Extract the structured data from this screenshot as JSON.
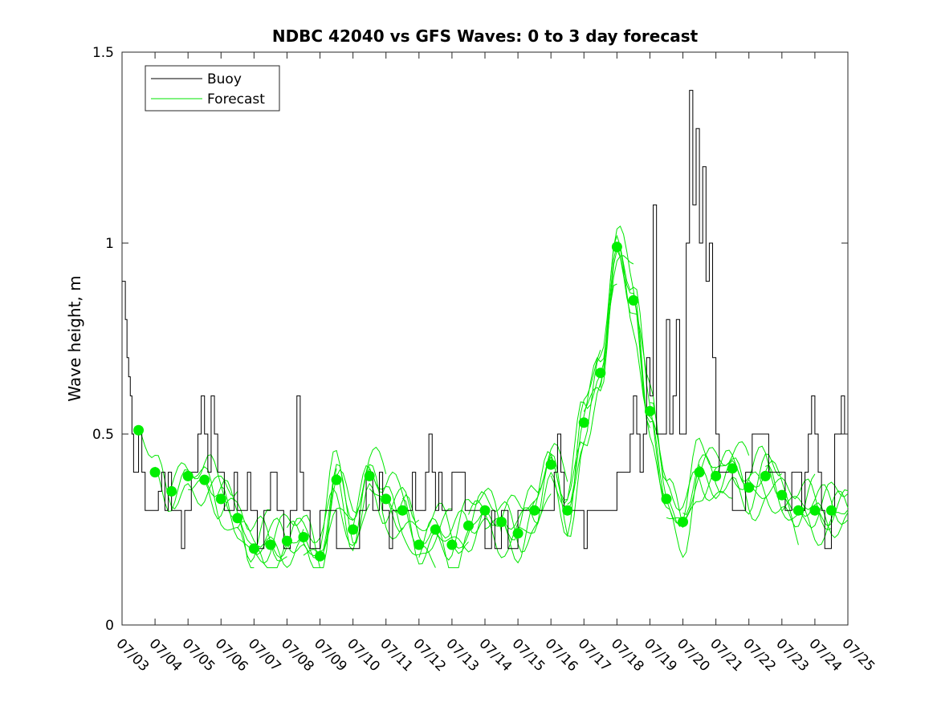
{
  "chart_data": {
    "type": "line",
    "title": "NDBC 42040 vs GFS Waves: 0 to 3 day forecast",
    "xlabel": "",
    "ylabel": "Wave height, m",
    "xlim": [
      "07/03",
      "07/25"
    ],
    "ylim": [
      0,
      1.5
    ],
    "grid": false,
    "legend_placement": "top-left",
    "x_tick_labels": [
      "07/03",
      "07/04",
      "07/05",
      "07/06",
      "07/07",
      "07/08",
      "07/09",
      "07/10",
      "07/11",
      "07/12",
      "07/13",
      "07/14",
      "07/15",
      "07/16",
      "07/17",
      "07/18",
      "07/19",
      "07/20",
      "07/21",
      "07/22",
      "07/23",
      "07/24",
      "07/25"
    ],
    "y_ticks": [
      0,
      0.5,
      1,
      1.5
    ],
    "y_tick_labels": [
      "0",
      "0.5",
      "1",
      "1.5"
    ],
    "colors": {
      "buoy": "#000000",
      "forecast": "#00e600",
      "analysis_markers": "#00ee00"
    },
    "series": [
      {
        "name": "Buoy",
        "x_days_from_0703": [
          0,
          0.1,
          0.15,
          0.2,
          0.25,
          0.3,
          0.35,
          0.4,
          0.5,
          0.6,
          0.7,
          0.75,
          0.8,
          0.9,
          1.0,
          1.1,
          1.2,
          1.3,
          1.35,
          1.4,
          1.5,
          1.6,
          1.7,
          1.8,
          1.9,
          2.0,
          2.05,
          2.1,
          2.2,
          2.3,
          2.4,
          2.5,
          2.6,
          2.7,
          2.8,
          2.9,
          3.0,
          3.1,
          3.2,
          3.3,
          3.4,
          3.5,
          3.6,
          3.7,
          3.8,
          3.9,
          4.0,
          4.1,
          4.2,
          4.3,
          4.4,
          4.5,
          4.6,
          4.7,
          4.8,
          4.9,
          5.0,
          5.1,
          5.2,
          5.3,
          5.4,
          5.5,
          5.6,
          5.7,
          5.8,
          5.9,
          6.0,
          6.1,
          6.2,
          6.3,
          6.4,
          6.5,
          6.6,
          6.7,
          6.8,
          6.9,
          7.0,
          7.1,
          7.2,
          7.3,
          7.4,
          7.5,
          7.6,
          7.7,
          7.8,
          7.9,
          8.0,
          8.1,
          8.2,
          8.3,
          8.4,
          8.5,
          8.6,
          8.7,
          8.8,
          8.9,
          9.0,
          9.1,
          9.2,
          9.3,
          9.4,
          9.5,
          9.6,
          9.7,
          9.8,
          9.9,
          10.0,
          10.1,
          10.2,
          10.3,
          10.4,
          10.5,
          10.6,
          10.7,
          10.8,
          10.9,
          11.0,
          11.1,
          11.2,
          11.3,
          11.4,
          11.5,
          11.6,
          11.7,
          11.8,
          11.9,
          12.0,
          12.1,
          12.2,
          12.3,
          12.4,
          12.5,
          12.6,
          12.7,
          12.8,
          12.9,
          13.0,
          13.1,
          13.2,
          13.3,
          13.4,
          13.5,
          13.6,
          13.7,
          13.8,
          13.9,
          14.0,
          14.1,
          14.2,
          14.3,
          14.4,
          14.5,
          14.6,
          14.7,
          14.8,
          14.9,
          15.0,
          15.1,
          15.2,
          15.3,
          15.4,
          15.5,
          15.6,
          15.7,
          15.8,
          15.9,
          16.0,
          16.1,
          16.2,
          16.3,
          16.4,
          16.5,
          16.6,
          16.7,
          16.8,
          16.9,
          17.0,
          17.1,
          17.2,
          17.3,
          17.4,
          17.5,
          17.6,
          17.7,
          17.8,
          17.9,
          18.0,
          18.1,
          18.2,
          18.3,
          18.4,
          18.5,
          18.6,
          18.7,
          18.8,
          18.9,
          19.0,
          19.1,
          19.2,
          19.3,
          19.4,
          19.5,
          19.6,
          19.7,
          19.8,
          19.9,
          20.0,
          20.1,
          20.2,
          20.3,
          20.4,
          20.5,
          20.6,
          20.7,
          20.8,
          20.9,
          21.0,
          21.1,
          21.2,
          21.3,
          21.4,
          21.5,
          21.6,
          21.7,
          21.8,
          21.9,
          22.0
        ],
        "y": [
          0.9,
          0.8,
          0.7,
          0.65,
          0.6,
          0.5,
          0.4,
          0.4,
          0.5,
          0.4,
          0.3,
          0.3,
          0.3,
          0.3,
          0.3,
          0.35,
          0.4,
          0.3,
          0.3,
          0.4,
          0.3,
          0.3,
          0.3,
          0.2,
          0.3,
          0.3,
          0.3,
          0.4,
          0.4,
          0.5,
          0.6,
          0.5,
          0.4,
          0.6,
          0.5,
          0.4,
          0.4,
          0.3,
          0.3,
          0.3,
          0.4,
          0.3,
          0.3,
          0.3,
          0.4,
          0.3,
          0.3,
          0.2,
          0.2,
          0.3,
          0.3,
          0.4,
          0.4,
          0.3,
          0.3,
          0.2,
          0.2,
          0.3,
          0.3,
          0.6,
          0.4,
          0.3,
          0.3,
          0.2,
          0.2,
          0.2,
          0.3,
          0.3,
          0.3,
          0.3,
          0.3,
          0.2,
          0.2,
          0.2,
          0.2,
          0.2,
          0.2,
          0.2,
          0.3,
          0.3,
          0.4,
          0.4,
          0.3,
          0.3,
          0.4,
          0.3,
          0.3,
          0.2,
          0.3,
          0.3,
          0.3,
          0.3,
          0.3,
          0.3,
          0.4,
          0.3,
          0.3,
          0.3,
          0.4,
          0.5,
          0.4,
          0.3,
          0.4,
          0.3,
          0.3,
          0.3,
          0.4,
          0.4,
          0.4,
          0.4,
          0.3,
          0.3,
          0.3,
          0.3,
          0.3,
          0.3,
          0.2,
          0.2,
          0.3,
          0.2,
          0.2,
          0.3,
          0.3,
          0.2,
          0.2,
          0.2,
          0.3,
          0.3,
          0.3,
          0.3,
          0.3,
          0.3,
          0.3,
          0.3,
          0.3,
          0.3,
          0.3,
          0.4,
          0.5,
          0.4,
          0.3,
          0.3,
          0.3,
          0.3,
          0.3,
          0.3,
          0.2,
          0.3,
          0.3,
          0.3,
          0.3,
          0.3,
          0.3,
          0.3,
          0.3,
          0.3,
          0.4,
          0.4,
          0.4,
          0.4,
          0.5,
          0.6,
          0.5,
          0.4,
          0.5,
          0.7,
          0.6,
          1.1,
          0.5,
          0.5,
          0.5,
          0.8,
          0.5,
          0.6,
          0.8,
          0.5,
          0.5,
          1.0,
          1.4,
          1.1,
          1.3,
          1.0,
          1.2,
          0.9,
          1.0,
          0.7,
          0.5,
          0.4,
          0.4,
          0.4,
          0.4,
          0.3,
          0.3,
          0.3,
          0.3,
          0.4,
          0.4,
          0.5,
          0.5,
          0.5,
          0.5,
          0.5,
          0.4,
          0.4,
          0.4,
          0.4,
          0.4,
          0.3,
          0.3,
          0.4,
          0.4,
          0.4,
          0.3,
          0.4,
          0.5,
          0.6,
          0.5,
          0.4,
          0.3,
          0.2,
          0.2,
          0.3,
          0.5,
          0.5,
          0.6,
          0.5,
          0.5,
          0.5,
          0.5,
          0.5
        ]
      },
      {
        "name": "Forecast",
        "analysis_points": {
          "x_days_from_0703": [
            0.5,
            1.0,
            1.5,
            2.0,
            2.5,
            3.0,
            3.5,
            4.0,
            4.5,
            5.0,
            5.5,
            6.0,
            6.5,
            7.0,
            7.5,
            8.0,
            8.5,
            9.0,
            9.5,
            10.0,
            10.5,
            11.0,
            11.5,
            12.0,
            12.5,
            13.0,
            13.5,
            14.0,
            14.5,
            15.0,
            15.5,
            16.0,
            16.5,
            17.0,
            17.5,
            18.0,
            18.5,
            19.0,
            19.5,
            20.0,
            20.5,
            21.0,
            21.5
          ],
          "y": [
            0.51,
            0.4,
            0.35,
            0.39,
            0.38,
            0.33,
            0.28,
            0.2,
            0.21,
            0.22,
            0.23,
            0.18,
            0.38,
            0.25,
            0.39,
            0.33,
            0.3,
            0.21,
            0.25,
            0.21,
            0.26,
            0.3,
            0.27,
            0.24,
            0.3,
            0.42,
            0.3,
            0.53,
            0.66,
            0.99,
            0.85,
            0.56,
            0.33,
            0.27,
            0.4,
            0.39,
            0.41,
            0.36,
            0.39,
            0.34,
            0.3,
            0.3,
            0.3
          ]
        }
      }
    ]
  }
}
